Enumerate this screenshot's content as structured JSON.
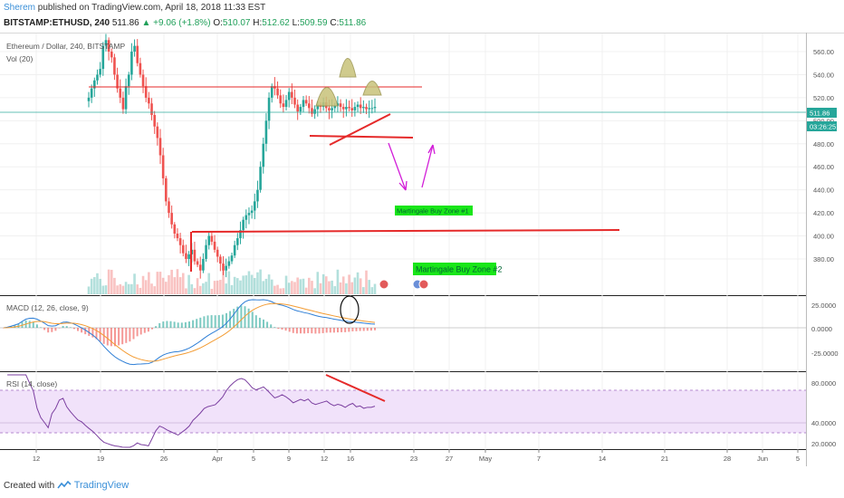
{
  "header": {
    "author": "Sherem",
    "publish_text": "published on TradingView.com, April 18, 2018 11:33 EST",
    "symbol_line": "BITSTAMP:ETHUSD, 240",
    "last": "511.86",
    "change": "+9.06 (+1.8%)",
    "o_label": "O:",
    "o_value": "510.07",
    "h_label": "H:",
    "h_value": "512.62",
    "l_label": "L:",
    "l_value": "509.59",
    "c_label": "C:",
    "c_value": "511.86"
  },
  "legend": {
    "title": "Ethereum / Dollar, 240, BITSTAMP",
    "vol": "Vol (20)",
    "macd": "MACD (12, 26, close, 9)",
    "rsi": "RSI (14, close)"
  },
  "price_axis": [
    "560.00",
    "540.00",
    "520.00",
    "500.00",
    "480.00",
    "460.00",
    "440.00",
    "420.00",
    "400.00",
    "380.00"
  ],
  "price_badge": "511.86",
  "countdown_badge": "03:26:25",
  "macd_axis": [
    "25.0000",
    "0.0000",
    "-25.0000"
  ],
  "rsi_axis": [
    "80.0000",
    "40.0000",
    "20.0000"
  ],
  "time_axis": [
    "12",
    "19",
    "26",
    "Apr",
    "5",
    "9",
    "12",
    "16",
    "23",
    "27",
    "May",
    "7",
    "14",
    "21",
    "28",
    "Jun",
    "5"
  ],
  "annotations": {
    "zone1": "Martingale Buy Zone #1",
    "zone2": "Martingale Buy Zone #2"
  },
  "colors": {
    "up": "#26a69a",
    "down": "#ef5350",
    "trend_red": "#e52a2a",
    "arrow": "#d21ed8",
    "zone_green": "#19e619",
    "hs_fill": "#c8c27a",
    "rsi_band": "#f1e2fa",
    "rsi_line": "#7b3fa0",
    "macd_line": "#2f7fd6",
    "signal_line": "#f39c34"
  },
  "chart_data": {
    "type": "line",
    "series": [
      {
        "name": "Ethereum / Dollar",
        "x": [
          0,
          4,
          8,
          12,
          16,
          20,
          24,
          28,
          32,
          36,
          40,
          44,
          48,
          52,
          56,
          60,
          64,
          68,
          72,
          76,
          80,
          84,
          88,
          92,
          96,
          100,
          104,
          108,
          112,
          116,
          120,
          124,
          128,
          132,
          136,
          140,
          144,
          148,
          152,
          156,
          160,
          164,
          168,
          172,
          176,
          180,
          184,
          188,
          192,
          196,
          200,
          204,
          208,
          212,
          216,
          220,
          224,
          228,
          232,
          236,
          240,
          244,
          248,
          252,
          256,
          260,
          264,
          268,
          272,
          276,
          280,
          284,
          288,
          292,
          296,
          300,
          304,
          308,
          312,
          316,
          320,
          324,
          328,
          332,
          336,
          340,
          344,
          348,
          352,
          356,
          360,
          364,
          368,
          372,
          376,
          380,
          384,
          388,
          392,
          396,
          400
        ],
        "close": [
          520,
          528,
          535,
          540,
          545,
          565,
          570,
          560,
          555,
          540,
          528,
          520,
          510,
          530,
          540,
          560,
          565,
          550,
          540,
          530,
          520,
          515,
          505,
          495,
          485,
          470,
          450,
          430,
          420,
          410,
          402,
          398,
          392,
          385,
          380,
          384,
          388,
          378,
          375,
          370,
          380,
          392,
          400,
          395,
          388,
          382,
          376,
          370,
          374,
          378,
          383,
          392,
          398,
          405,
          414,
          418,
          420,
          422,
          430,
          440,
          460,
          480,
          500,
          520,
          530,
          528,
          522,
          515,
          512,
          518,
          525,
          520,
          514,
          508,
          512,
          518,
          515,
          511,
          506,
          510,
          514,
          512,
          516,
          511,
          509,
          511,
          513,
          515,
          512,
          510,
          512,
          511,
          509,
          512,
          514,
          511,
          512,
          510,
          511,
          511,
          512
        ]
      }
    ],
    "x_ticks": [
      "12",
      "19",
      "26",
      "Apr",
      "5",
      "9",
      "12",
      "16",
      "23",
      "27",
      "May",
      "7",
      "14",
      "21",
      "28",
      "Jun",
      "5"
    ],
    "ylim": [
      370,
      570
    ],
    "xlabel": "",
    "ylabel": "",
    "levels": [
      533,
      512,
      422
    ],
    "grid": true
  }
}
